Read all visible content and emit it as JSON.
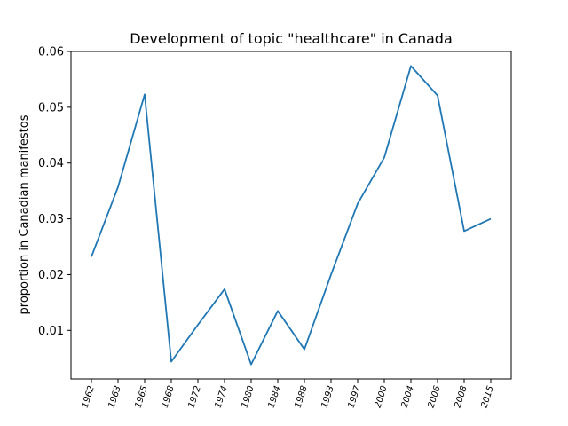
{
  "chart_data": {
    "type": "line",
    "title": "Development of topic \"healthcare\" in Canada",
    "xlabel": "",
    "ylabel": "proportion in Canadian manifestos",
    "categories": [
      "1962",
      "1963",
      "1965",
      "1968",
      "1972",
      "1974",
      "1980",
      "1984",
      "1988",
      "1993",
      "1997",
      "2000",
      "2004",
      "2006",
      "2008",
      "2015"
    ],
    "series": [
      {
        "values": [
          0.0232,
          0.0357,
          0.0523,
          0.0044,
          0.011,
          0.0174,
          0.0039,
          0.0135,
          0.0066,
          0.02,
          0.0327,
          0.041,
          0.0574,
          0.0521,
          0.0278,
          0.03
        ],
        "color": "#1f77b4"
      }
    ],
    "yticks": [
      "0.01",
      "0.02",
      "0.03",
      "0.04",
      "0.05",
      "0.06"
    ],
    "ylim": [
      0.0013,
      0.06
    ],
    "grid": false,
    "legend": "none"
  }
}
